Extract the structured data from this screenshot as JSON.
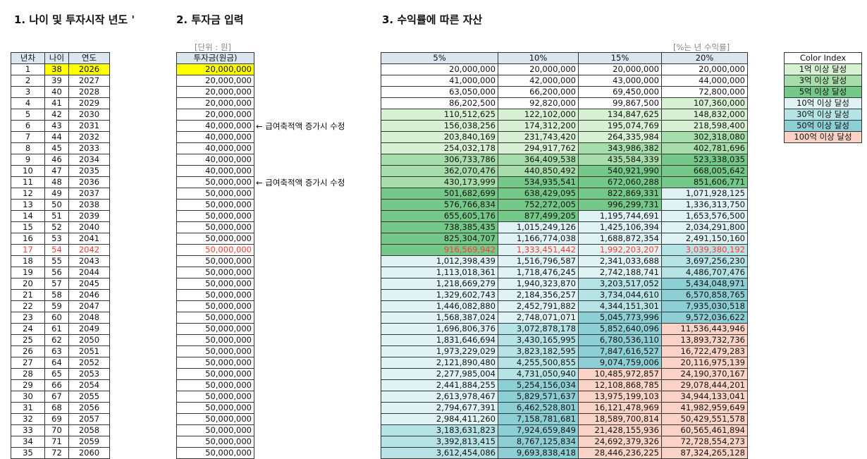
{
  "headings": [
    "1. 나이 및 투자시작 년도 '",
    "2. 투자금 입력",
    "3. 수익률에 따른 자산"
  ],
  "input_color": "#ffff00",
  "emphasis": {
    "row": 17,
    "color": "#ff3b30"
  },
  "left_table": {
    "headers": [
      "년차",
      "나이",
      "연도"
    ],
    "rows": [
      [
        "1",
        "38",
        "2026"
      ],
      [
        "2",
        "39",
        "2027"
      ],
      [
        "3",
        "40",
        "2028"
      ],
      [
        "4",
        "41",
        "2029"
      ],
      [
        "5",
        "42",
        "2030"
      ],
      [
        "6",
        "43",
        "2031"
      ],
      [
        "7",
        "44",
        "2032"
      ],
      [
        "8",
        "45",
        "2033"
      ],
      [
        "9",
        "46",
        "2034"
      ],
      [
        "10",
        "47",
        "2035"
      ],
      [
        "11",
        "48",
        "2036"
      ],
      [
        "12",
        "49",
        "2037"
      ],
      [
        "13",
        "50",
        "2038"
      ],
      [
        "14",
        "51",
        "2039"
      ],
      [
        "15",
        "52",
        "2040"
      ],
      [
        "16",
        "53",
        "2041"
      ],
      [
        "17",
        "54",
        "2042"
      ],
      [
        "18",
        "55",
        "2043"
      ],
      [
        "19",
        "56",
        "2044"
      ],
      [
        "20",
        "57",
        "2045"
      ],
      [
        "21",
        "58",
        "2046"
      ],
      [
        "22",
        "59",
        "2047"
      ],
      [
        "23",
        "60",
        "2048"
      ],
      [
        "24",
        "61",
        "2049"
      ],
      [
        "25",
        "62",
        "2050"
      ],
      [
        "26",
        "63",
        "2051"
      ],
      [
        "27",
        "64",
        "2052"
      ],
      [
        "28",
        "65",
        "2053"
      ],
      [
        "29",
        "66",
        "2054"
      ],
      [
        "30",
        "67",
        "2055"
      ],
      [
        "31",
        "68",
        "2056"
      ],
      [
        "32",
        "69",
        "2057"
      ],
      [
        "33",
        "70",
        "2058"
      ],
      [
        "34",
        "71",
        "2059"
      ],
      [
        "35",
        "72",
        "2060"
      ]
    ]
  },
  "principal": {
    "unit": "[단위 : 원]",
    "header": "투자금(원금)",
    "values": [
      "20,000,000",
      "20,000,000",
      "20,000,000",
      "20,000,000",
      "20,000,000",
      "40,000,000",
      "40,000,000",
      "40,000,000",
      "40,000,000",
      "40,000,000",
      "50,000,000",
      "50,000,000",
      "50,000,000",
      "50,000,000",
      "50,000,000",
      "50,000,000",
      "50,000,000",
      "50,000,000",
      "50,000,000",
      "50,000,000",
      "50,000,000",
      "50,000,000",
      "50,000,000",
      "50,000,000",
      "50,000,000",
      "50,000,000",
      "50,000,000",
      "50,000,000",
      "50,000,000",
      "50,000,000",
      "50,000,000",
      "50,000,000",
      "50,000,000",
      "50,000,000",
      "50,000,000"
    ],
    "notes": [
      null,
      null,
      null,
      null,
      null,
      "← 급여축적액 증가시 수정",
      null,
      null,
      null,
      null,
      "← 급여축적액 증가시 수정",
      null,
      null,
      null,
      null,
      null,
      null,
      null,
      null,
      null,
      null,
      null,
      null,
      null,
      null,
      null,
      null,
      null,
      null,
      null,
      null,
      null,
      null,
      null,
      null
    ]
  },
  "returns": {
    "note": "[%는 년 수익률]",
    "headers": [
      "5%",
      "10%",
      "15%",
      "20%"
    ],
    "rows": [
      [
        "20,000,000",
        "20,000,000",
        "20,000,000",
        "20,000,000"
      ],
      [
        "41,000,000",
        "42,000,000",
        "43,000,000",
        "44,000,000"
      ],
      [
        "63,050,000",
        "66,200,000",
        "69,450,000",
        "72,800,000"
      ],
      [
        "86,202,500",
        "92,820,000",
        "99,867,500",
        "107,360,000"
      ],
      [
        "110,512,625",
        "122,102,000",
        "134,847,625",
        "148,832,000"
      ],
      [
        "156,038,256",
        "174,312,200",
        "195,074,769",
        "218,598,400"
      ],
      [
        "203,840,169",
        "231,743,420",
        "264,335,984",
        "302,318,080"
      ],
      [
        "254,032,178",
        "294,917,762",
        "343,986,382",
        "402,781,696"
      ],
      [
        "306,733,786",
        "364,409,538",
        "435,584,339",
        "523,338,035"
      ],
      [
        "362,070,476",
        "440,850,492",
        "540,921,990",
        "668,005,642"
      ],
      [
        "430,173,999",
        "534,935,541",
        "672,060,288",
        "851,606,771"
      ],
      [
        "501,682,699",
        "638,429,095",
        "822,869,331",
        "1,071,928,125"
      ],
      [
        "576,766,834",
        "752,272,005",
        "996,299,731",
        "1,336,313,750"
      ],
      [
        "655,605,176",
        "877,499,205",
        "1,195,744,691",
        "1,653,576,500"
      ],
      [
        "738,385,435",
        "1,015,249,126",
        "1,425,106,394",
        "2,034,291,800"
      ],
      [
        "825,304,707",
        "1,166,774,038",
        "1,688,872,354",
        "2,491,150,160"
      ],
      [
        "916,569,942",
        "1,333,451,442",
        "1,992,203,207",
        "3,039,380,192"
      ],
      [
        "1,012,398,439",
        "1,516,796,587",
        "2,341,033,688",
        "3,697,256,230"
      ],
      [
        "1,113,018,361",
        "1,718,476,245",
        "2,742,188,741",
        "4,486,707,476"
      ],
      [
        "1,218,669,279",
        "1,940,323,870",
        "3,203,517,052",
        "5,434,048,971"
      ],
      [
        "1,329,602,743",
        "2,184,356,257",
        "3,734,044,610",
        "6,570,858,765"
      ],
      [
        "1,446,082,880",
        "2,452,791,882",
        "4,344,151,301",
        "7,935,030,518"
      ],
      [
        "1,568,387,024",
        "2,748,071,071",
        "5,045,773,996",
        "9,572,036,622"
      ],
      [
        "1,696,806,376",
        "3,072,878,178",
        "5,852,640,096",
        "11,536,443,946"
      ],
      [
        "1,831,646,694",
        "3,430,165,995",
        "6,780,536,110",
        "13,893,732,736"
      ],
      [
        "1,973,229,029",
        "3,823,182,595",
        "7,847,616,527",
        "16,722,479,283"
      ],
      [
        "2,121,890,480",
        "4,255,500,855",
        "9,074,759,006",
        "20,116,975,139"
      ],
      [
        "2,277,985,004",
        "4,731,050,940",
        "10,485,972,857",
        "24,190,370,167"
      ],
      [
        "2,441,884,255",
        "5,254,156,034",
        "12,108,868,785",
        "29,078,444,201"
      ],
      [
        "2,613,978,467",
        "5,829,571,637",
        "13,975,199,103",
        "34,944,133,041"
      ],
      [
        "2,794,677,391",
        "6,462,528,801",
        "16,121,478,969",
        "41,982,959,649"
      ],
      [
        "2,984,411,260",
        "7,158,781,681",
        "18,589,700,814",
        "50,429,551,578"
      ],
      [
        "3,183,631,823",
        "7,924,659,849",
        "21,428,155,936",
        "60,565,461,894"
      ],
      [
        "3,392,813,415",
        "8,767,125,834",
        "24,692,379,326",
        "72,728,554,273"
      ],
      [
        "3,612,454,086",
        "9,693,838,418",
        "28,446,236,225",
        "87,324,265,128"
      ]
    ]
  },
  "color_index": {
    "title": "Color Index",
    "levels": [
      {
        "label": "1억 이상 달성",
        "min": 100000000,
        "color": "#d8f0d3"
      },
      {
        "label": "3억 이상 달성",
        "min": 300000000,
        "color": "#a6ddaa"
      },
      {
        "label": "5억 이상 달성",
        "min": 500000000,
        "color": "#74c888"
      },
      {
        "label": "10억 이상 달성",
        "min": 1000000000,
        "color": "#dff3f4"
      },
      {
        "label": "30억 이상 달성",
        "min": 3000000000,
        "color": "#b5e3e6"
      },
      {
        "label": "50억 이상 달성",
        "min": 5000000000,
        "color": "#8ccfd5"
      },
      {
        "label": "100억 이상 달성",
        "min": 10000000000,
        "color": "#fbd3c6"
      }
    ]
  }
}
